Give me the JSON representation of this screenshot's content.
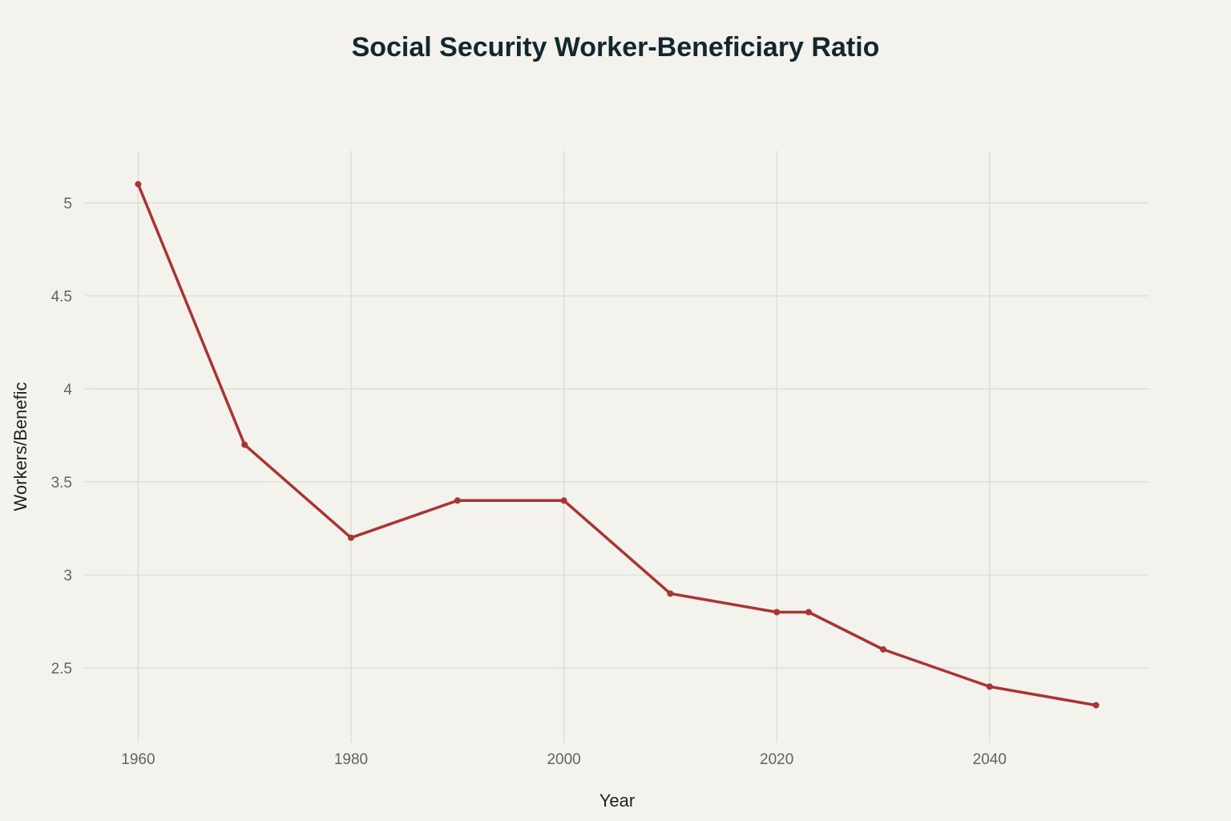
{
  "chart_data": {
    "type": "line",
    "title": "Social Security Worker-Beneficiary Ratio",
    "xlabel": "Year",
    "ylabel": "Workers/Benefic",
    "xlim": [
      1955,
      2055
    ],
    "ylim": [
      2.1,
      5.28
    ],
    "x_ticks": [
      1960,
      1980,
      2000,
      2020,
      2040
    ],
    "x_tick_labels": [
      "1960",
      "1980",
      "2000",
      "2020",
      "2040"
    ],
    "y_ticks": [
      2.5,
      3,
      3.5,
      4,
      4.5,
      5
    ],
    "y_tick_labels": [
      "2.5",
      "3",
      "3.5",
      "4",
      "4.5",
      "5"
    ],
    "grid": true,
    "legend": "none",
    "series": [
      {
        "color": "#a83532",
        "x": [
          1960,
          1970,
          1980,
          1990,
          2000,
          2010,
          2020,
          2023,
          2030,
          2040,
          2050
        ],
        "y": [
          5.1,
          3.7,
          3.2,
          3.4,
          3.4,
          2.9,
          2.8,
          2.8,
          2.6,
          2.4,
          2.3
        ]
      }
    ]
  }
}
